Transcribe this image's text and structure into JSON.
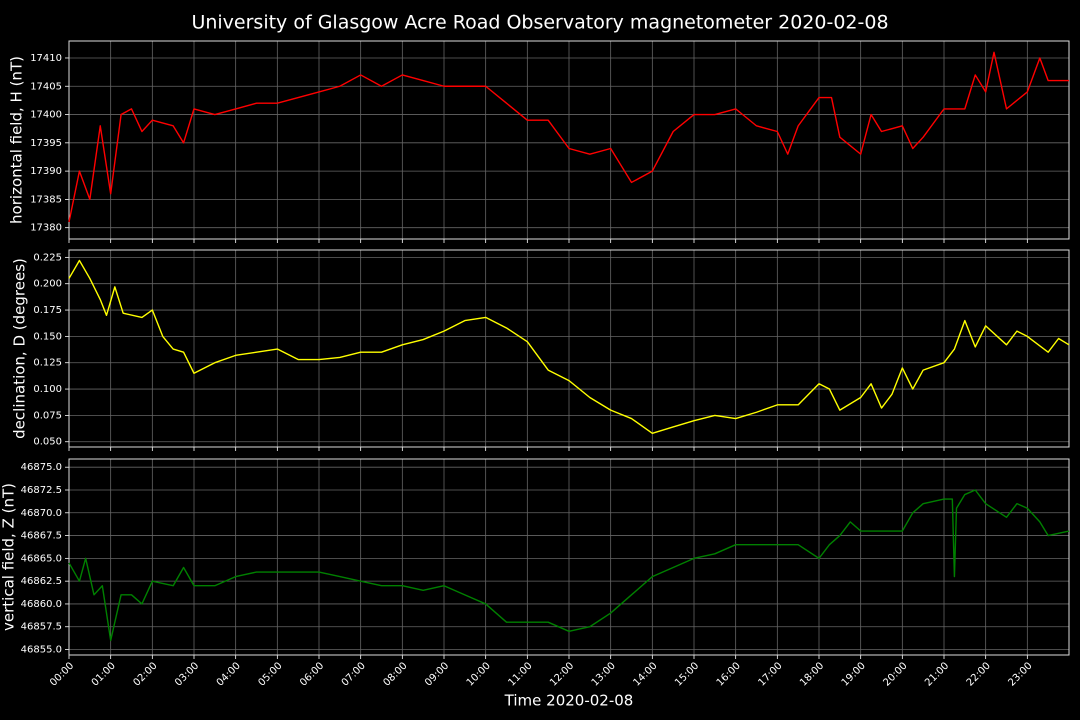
{
  "title": "University of Glasgow Acre Road Observatory magnetometer 2020-02-08",
  "chart_data": [
    {
      "type": "line",
      "ylabel": "horizontal field, H (nT)",
      "color": "#ff0000",
      "grid": true,
      "xlim": [
        0,
        24
      ],
      "ylim": [
        17378,
        17413
      ],
      "yticks": [
        17380,
        17385,
        17390,
        17395,
        17400,
        17405,
        17410
      ],
      "x": [
        0,
        0.25,
        0.5,
        0.75,
        1.0,
        1.25,
        1.5,
        1.75,
        2.0,
        2.5,
        2.75,
        3.0,
        3.5,
        4.0,
        4.5,
        5.0,
        5.5,
        6.0,
        6.5,
        7.0,
        7.5,
        8.0,
        8.5,
        9.0,
        9.5,
        10.0,
        10.5,
        11.0,
        11.5,
        12.0,
        12.5,
        13.0,
        13.5,
        14.0,
        14.5,
        15.0,
        15.5,
        16.0,
        16.5,
        17.0,
        17.25,
        17.5,
        18.0,
        18.3,
        18.5,
        19.0,
        19.25,
        19.5,
        20.0,
        20.25,
        20.5,
        21.0,
        21.5,
        21.75,
        22.0,
        22.2,
        22.5,
        23.0,
        23.3,
        23.5,
        24.0
      ],
      "values": [
        17381,
        17390,
        17385,
        17398,
        17386,
        17400,
        17401,
        17397,
        17399,
        17398,
        17395,
        17401,
        17400,
        17401,
        17402,
        17402,
        17403,
        17404,
        17405,
        17407,
        17405,
        17407,
        17406,
        17405,
        17405,
        17405,
        17402,
        17399,
        17399,
        17394,
        17393,
        17394,
        17388,
        17390,
        17397,
        17400,
        17400,
        17401,
        17398,
        17397,
        17393,
        17398,
        17403,
        17403,
        17396,
        17393,
        17400,
        17397,
        17398,
        17394,
        17396,
        17401,
        17401,
        17407,
        17404,
        17411,
        17401,
        17404,
        17410,
        17406,
        17406
      ]
    },
    {
      "type": "line",
      "ylabel": "declination, D (degrees)",
      "color": "#ffff00",
      "grid": true,
      "xlim": [
        0,
        24
      ],
      "ylim": [
        0.045,
        0.232
      ],
      "yticks": [
        {
          "value": 0.05,
          "label": "0.050"
        },
        0.075,
        {
          "value": 0.1,
          "label": "0.100"
        },
        0.125,
        {
          "value": 0.15,
          "label": "0.150"
        },
        0.175,
        {
          "value": 0.2,
          "label": "0.200"
        },
        0.225
      ],
      "x": [
        0,
        0.25,
        0.5,
        0.75,
        0.9,
        1.1,
        1.3,
        1.75,
        2.0,
        2.25,
        2.5,
        2.75,
        3.0,
        3.5,
        4.0,
        4.5,
        5.0,
        5.5,
        6.0,
        6.5,
        7.0,
        7.5,
        8.0,
        8.5,
        9.0,
        9.5,
        10.0,
        10.5,
        11.0,
        11.5,
        12.0,
        12.5,
        13.0,
        13.5,
        14.0,
        14.5,
        15.0,
        15.5,
        16.0,
        16.5,
        17.0,
        17.5,
        18.0,
        18.25,
        18.5,
        19.0,
        19.25,
        19.5,
        19.75,
        20.0,
        20.25,
        20.5,
        21.0,
        21.25,
        21.5,
        21.75,
        22.0,
        22.5,
        22.75,
        23.0,
        23.5,
        23.75,
        24.0
      ],
      "values": [
        0.205,
        0.222,
        0.205,
        0.185,
        0.17,
        0.197,
        0.172,
        0.168,
        0.175,
        0.15,
        0.138,
        0.135,
        0.115,
        0.125,
        0.132,
        0.135,
        0.138,
        0.128,
        0.128,
        0.13,
        0.135,
        0.135,
        0.142,
        0.147,
        0.155,
        0.165,
        0.168,
        0.158,
        0.145,
        0.118,
        0.108,
        0.092,
        0.08,
        0.072,
        0.058,
        0.064,
        0.07,
        0.075,
        0.072,
        0.078,
        0.085,
        0.085,
        0.105,
        0.1,
        0.08,
        0.092,
        0.105,
        0.082,
        0.095,
        0.12,
        0.1,
        0.118,
        0.125,
        0.138,
        0.165,
        0.14,
        0.16,
        0.142,
        0.155,
        0.15,
        0.135,
        0.148,
        0.142
      ]
    },
    {
      "type": "line",
      "ylabel": "vertical field, Z (nT)",
      "xlabel": "Time 2020-02-08",
      "color": "#008000",
      "grid": true,
      "xlim": [
        0,
        24
      ],
      "ylim": [
        46854.4,
        46875.9
      ],
      "yticks": [
        {
          "value": 46855,
          "label": "46855.0"
        },
        {
          "value": 46857.5,
          "label": "46857.5"
        },
        {
          "value": 46860,
          "label": "46860.0"
        },
        {
          "value": 46862.5,
          "label": "46862.5"
        },
        {
          "value": 46865,
          "label": "46865.0"
        },
        {
          "value": 46867.5,
          "label": "46867.5"
        },
        {
          "value": 46870,
          "label": "46870.0"
        },
        {
          "value": 46872.5,
          "label": "46872.5"
        },
        {
          "value": 46875,
          "label": "46875.0"
        }
      ],
      "xticks": [
        {
          "value": 0,
          "label": "00:00"
        },
        {
          "value": 1,
          "label": "01:00"
        },
        {
          "value": 2,
          "label": "02:00"
        },
        {
          "value": 3,
          "label": "03:00"
        },
        {
          "value": 4,
          "label": "04:00"
        },
        {
          "value": 5,
          "label": "05:00"
        },
        {
          "value": 6,
          "label": "06:00"
        },
        {
          "value": 7,
          "label": "07:00"
        },
        {
          "value": 8,
          "label": "08:00"
        },
        {
          "value": 9,
          "label": "09:00"
        },
        {
          "value": 10,
          "label": "10:00"
        },
        {
          "value": 11,
          "label": "11:00"
        },
        {
          "value": 12,
          "label": "12:00"
        },
        {
          "value": 13,
          "label": "13:00"
        },
        {
          "value": 14,
          "label": "14:00"
        },
        {
          "value": 15,
          "label": "15:00"
        },
        {
          "value": 16,
          "label": "16:00"
        },
        {
          "value": 17,
          "label": "17:00"
        },
        {
          "value": 18,
          "label": "18:00"
        },
        {
          "value": 19,
          "label": "19:00"
        },
        {
          "value": 20,
          "label": "20:00"
        },
        {
          "value": 21,
          "label": "21:00"
        },
        {
          "value": 22,
          "label": "22:00"
        },
        {
          "value": 23,
          "label": "23:00"
        }
      ],
      "x": [
        0,
        0.25,
        0.4,
        0.6,
        0.8,
        1.0,
        1.25,
        1.5,
        1.75,
        2.0,
        2.5,
        2.75,
        3.0,
        3.5,
        4.0,
        4.5,
        5.0,
        5.5,
        6.0,
        6.5,
        7.0,
        7.5,
        8.0,
        8.5,
        9.0,
        9.5,
        10.0,
        10.5,
        11.0,
        11.5,
        12.0,
        12.5,
        13.0,
        13.5,
        14.0,
        14.5,
        15.0,
        15.5,
        16.0,
        16.5,
        17.0,
        17.5,
        18.0,
        18.25,
        18.5,
        18.75,
        19.0,
        19.5,
        20.0,
        20.25,
        20.5,
        21.0,
        21.2,
        21.25,
        21.3,
        21.5,
        21.75,
        22.0,
        22.5,
        22.75,
        23.0,
        23.3,
        23.5,
        24.0
      ],
      "values": [
        46864.5,
        46862.5,
        46865,
        46861,
        46862,
        46856,
        46861,
        46861,
        46860,
        46862.5,
        46862,
        46864,
        46862,
        46862,
        46863,
        46863.5,
        46863.5,
        46863.5,
        46863.5,
        46863,
        46862.5,
        46862,
        46862,
        46861.5,
        46862,
        46861,
        46860,
        46858,
        46858,
        46858,
        46857,
        46857.5,
        46859,
        46861,
        46863,
        46864,
        46865,
        46865.5,
        46866.5,
        46866.5,
        46866.5,
        46866.5,
        46865,
        46866.5,
        46867.5,
        46869,
        46868,
        46868,
        46868,
        46870,
        46871,
        46871.5,
        46871.5,
        46863,
        46870.5,
        46872,
        46872.5,
        46871,
        46869.5,
        46871,
        46870.5,
        46869,
        46867.5,
        46868
      ]
    }
  ]
}
